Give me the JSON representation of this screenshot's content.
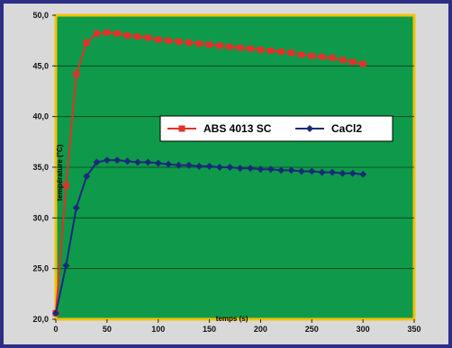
{
  "chart_data": {
    "type": "line",
    "title": "",
    "xlabel": "temps (s)",
    "ylabel": "température (°C)",
    "xlim": [
      0,
      350
    ],
    "ylim": [
      20,
      50
    ],
    "x_ticks": [
      "0",
      "50",
      "100",
      "150",
      "200",
      "250",
      "300",
      "350"
    ],
    "y_ticks": [
      "20,0",
      "25,0",
      "30,0",
      "35,0",
      "40,0",
      "45,0",
      "50,0"
    ],
    "grid": "horizontal",
    "legend_position": "center-right",
    "plot_background": "#0e9a4a",
    "plot_border": "#f2c200",
    "series": [
      {
        "name": "ABS 4013 SC",
        "color": "#e0322a",
        "marker": "square",
        "x": [
          0,
          10,
          20,
          30,
          40,
          50,
          60,
          70,
          80,
          90,
          100,
          110,
          120,
          130,
          140,
          150,
          160,
          170,
          180,
          190,
          200,
          210,
          220,
          230,
          240,
          250,
          260,
          270,
          280,
          290,
          300
        ],
        "y": [
          20.6,
          33.2,
          44.2,
          47.3,
          48.2,
          48.3,
          48.2,
          48.0,
          47.9,
          47.8,
          47.6,
          47.5,
          47.4,
          47.3,
          47.2,
          47.1,
          47.0,
          46.9,
          46.8,
          46.7,
          46.6,
          46.5,
          46.4,
          46.3,
          46.1,
          46.0,
          45.9,
          45.8,
          45.6,
          45.4,
          45.2
        ]
      },
      {
        "name": "CaCl2",
        "color": "#1a2a7a",
        "marker": "diamond",
        "x": [
          0,
          10,
          20,
          30,
          40,
          50,
          60,
          70,
          80,
          90,
          100,
          110,
          120,
          130,
          140,
          150,
          160,
          170,
          180,
          190,
          200,
          210,
          220,
          230,
          240,
          250,
          260,
          270,
          280,
          290,
          300
        ],
        "y": [
          20.6,
          25.3,
          31.0,
          34.1,
          35.5,
          35.7,
          35.7,
          35.6,
          35.5,
          35.5,
          35.4,
          35.3,
          35.2,
          35.2,
          35.1,
          35.1,
          35.0,
          35.0,
          34.9,
          34.9,
          34.8,
          34.8,
          34.7,
          34.7,
          34.6,
          34.6,
          34.5,
          34.5,
          34.4,
          34.4,
          34.3
        ]
      }
    ]
  }
}
